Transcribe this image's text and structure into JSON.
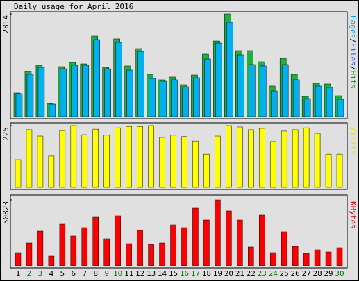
{
  "chart_data": [
    {
      "type": "bar",
      "title": "Daily usage for April 2016",
      "label_parts": [
        {
          "text": "Pages",
          "color": "#00a0e0"
        },
        {
          "text": "/",
          "color": "#000000"
        },
        {
          "text": "Files",
          "color": "#0040ff"
        },
        {
          "text": "/",
          "color": "#000000"
        },
        {
          "text": "Hits",
          "color": "#00a000"
        }
      ],
      "ylim": [
        0,
        2814
      ],
      "yticks": [
        2814
      ],
      "series": [
        {
          "name": "Hits",
          "color": "#20b040",
          "values": [
            646,
            1236,
            1407,
            361,
            1369,
            1483,
            1445,
            2205,
            1350,
            2130,
            1388,
            1863,
            1160,
            1008,
            1084,
            875,
            1141,
            1711,
            2072,
            2814,
            1806,
            1806,
            1502,
            837,
            1597,
            1160,
            551,
            913,
            894,
            570
          ]
        },
        {
          "name": "Files",
          "color": "#00b0f0",
          "values": [
            627,
            1160,
            1350,
            342,
            1312,
            1407,
            1407,
            2110,
            1312,
            2034,
            1274,
            1787,
            1046,
            970,
            1008,
            818,
            1065,
            1578,
            2015,
            2586,
            1692,
            1426,
            1388,
            703,
            1426,
            1008,
            494,
            837,
            799,
            475
          ]
        }
      ]
    },
    {
      "type": "bar",
      "y_label": "Visits",
      "label_color": "#e0e000",
      "ylim": [
        0,
        225
      ],
      "yticks": [
        225
      ],
      "series": [
        {
          "name": "Visits",
          "color": "#ffff00",
          "values": [
            101,
            210,
            187,
            114,
            207,
            225,
            192,
            212,
            190,
            217,
            222,
            222,
            225,
            182,
            190,
            185,
            169,
            121,
            187,
            225,
            220,
            210,
            215,
            167,
            205,
            210,
            217,
            197,
            121,
            121
          ]
        }
      ]
    },
    {
      "type": "bar",
      "y_label": "KBytes",
      "label_color": "#e00000",
      "ylim": [
        0,
        50823
      ],
      "yticks": [
        50823
      ],
      "series": [
        {
          "name": "KBytes",
          "color": "#ff0000",
          "values": [
            10164,
            17654,
            26749,
            7490,
            32098,
            23006,
            29424,
            37449,
            20866,
            38518,
            17119,
            27284,
            16584,
            17654,
            31563,
            29424,
            44404,
            35309,
            50823,
            42264,
            35309,
            14445,
            39053,
            10164,
            26214,
            14980,
            9630,
            12305,
            10700,
            13910
          ]
        }
      ],
      "categories": [
        "1",
        "2",
        "3",
        "4",
        "5",
        "6",
        "7",
        "8",
        "9",
        "10",
        "11",
        "12",
        "13",
        "14",
        "15",
        "16",
        "17",
        "18",
        "19",
        "20",
        "21",
        "22",
        "23",
        "24",
        "25",
        "26",
        "27",
        "28",
        "29",
        "30"
      ],
      "category_colors": [
        "#000000",
        "#008000",
        "#008000",
        "#000000",
        "#000000",
        "#000000",
        "#000000",
        "#000000",
        "#008000",
        "#008000",
        "#000000",
        "#000000",
        "#000000",
        "#000000",
        "#000000",
        "#008000",
        "#008000",
        "#000000",
        "#000000",
        "#000000",
        "#000000",
        "#000000",
        "#008000",
        "#008000",
        "#000000",
        "#000000",
        "#000000",
        "#000000",
        "#000000",
        "#008000"
      ]
    }
  ]
}
